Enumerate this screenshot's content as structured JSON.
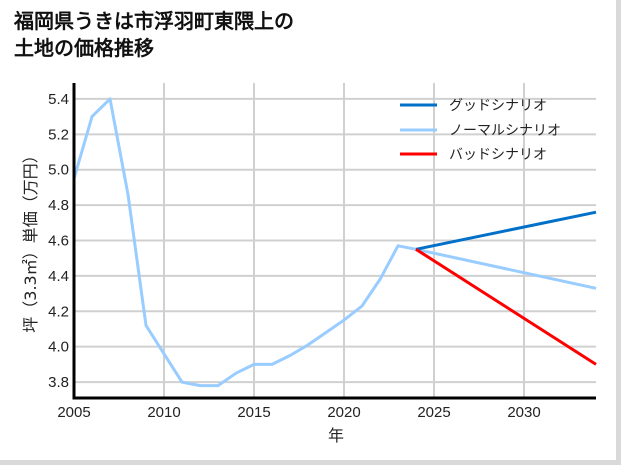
{
  "title_line1": "福岡県うきは市浮羽町東隈上の",
  "title_line2": "土地の価格推移",
  "chart_data": {
    "type": "line",
    "title": "福岡県うきは市浮羽町東隈上の土地の価格推移",
    "xlabel": "年",
    "ylabel": "坪（3.3㎡）単価（万円）",
    "xlim": [
      2005,
      2034
    ],
    "ylim": [
      3.71,
      5.49
    ],
    "xticks": [
      2005,
      2010,
      2015,
      2020,
      2025,
      2030
    ],
    "yticks": [
      3.8,
      4.0,
      4.2,
      4.4,
      4.6,
      4.8,
      5.0,
      5.2,
      5.4
    ],
    "xtick_labels": [
      "2005",
      "2010",
      "2015",
      "2020",
      "2025",
      "2030"
    ],
    "ytick_labels": [
      "3.8",
      "4.0",
      "4.2",
      "4.4",
      "4.6",
      "4.8",
      "5.0",
      "5.2",
      "5.4"
    ],
    "grid": true,
    "legend_position": "upper right",
    "series": [
      {
        "name": "グッドシナリオ",
        "color": "#0070c8",
        "x": [
          2024,
          2034
        ],
        "values": [
          4.55,
          4.76
        ]
      },
      {
        "name": "ノーマルシナリオ",
        "color": "#99ccff",
        "x": [
          2005,
          2006,
          2007,
          2008,
          2009,
          2010,
          2011,
          2012,
          2013,
          2014,
          2015,
          2016,
          2017,
          2018,
          2019,
          2020,
          2021,
          2022,
          2023,
          2024,
          2034
        ],
        "values": [
          4.95,
          5.3,
          5.4,
          4.86,
          4.12,
          3.96,
          3.8,
          3.78,
          3.78,
          3.85,
          3.9,
          3.9,
          3.95,
          4.01,
          4.08,
          4.15,
          4.23,
          4.38,
          4.57,
          4.55,
          4.33
        ]
      },
      {
        "name": "バッドシナリオ",
        "color": "#ff0000",
        "x": [
          2024,
          2034
        ],
        "values": [
          4.55,
          3.9
        ]
      }
    ]
  }
}
